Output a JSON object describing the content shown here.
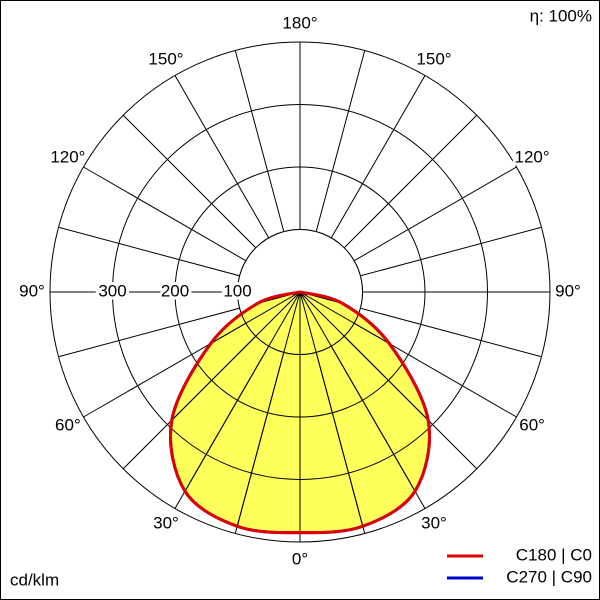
{
  "chart_data": {
    "type": "polar",
    "efficiency": "η: 100%",
    "unit": "cd/klm",
    "rlim": [
      0,
      400
    ],
    "rticks": [
      100,
      200,
      300
    ],
    "angle_ticks": [
      {
        "value": 0,
        "label": "0°"
      },
      {
        "value": 30,
        "label": "30°"
      },
      {
        "value": 60,
        "label": "60°"
      },
      {
        "value": 90,
        "label": "90°"
      },
      {
        "value": 120,
        "label": "120°"
      },
      {
        "value": 150,
        "label": "150°"
      },
      {
        "value": 180,
        "label": "180°"
      }
    ],
    "x": [
      0,
      15,
      30,
      45,
      60,
      75,
      90
    ],
    "series": [
      {
        "name": "C270 | C90",
        "color": "#0000c8",
        "values": [
          385,
          388,
          368,
          290,
          165,
          70,
          0
        ]
      },
      {
        "name": "C180 | C0",
        "color": "#e00000",
        "values": [
          385,
          388,
          368,
          290,
          165,
          70,
          0
        ]
      }
    ]
  }
}
